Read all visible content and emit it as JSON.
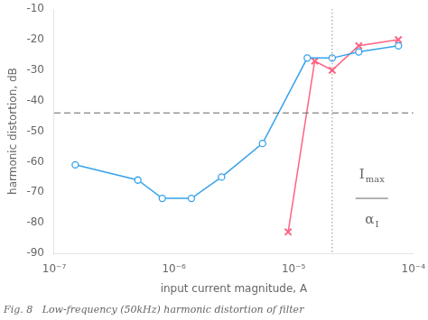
{
  "chart_data": {
    "type": "line",
    "xlabel": "input current magnitude, A",
    "ylabel": "harmonic distortion, dB",
    "caption": "Fig. 8   Low-frequency (50kHz) harmonic distortion of filter",
    "log": "x",
    "grid": false,
    "xlim": [
      1e-07,
      0.0001
    ],
    "xticks": [
      {
        "value": 1e-07,
        "label": "10⁻⁷"
      },
      {
        "value": 1e-06,
        "label": "10⁻⁶"
      },
      {
        "value": 1e-05,
        "label": "10⁻⁵"
      },
      {
        "value": 0.0001,
        "label": "10⁻⁴"
      }
    ],
    "ylim": [
      -90,
      -10
    ],
    "yticks": [
      -90,
      -80,
      -70,
      -60,
      -50,
      -40,
      -30,
      -20,
      -10
    ],
    "series": [
      {
        "x": [
          1.5e-07,
          5e-07,
          8e-07,
          1.4e-06,
          2.5e-06,
          5.5e-06,
          1.3e-05,
          2.1e-05,
          3.5e-05,
          7.5e-05
        ],
        "values": [
          -61,
          -66,
          -72,
          -72,
          -65,
          -54,
          -26,
          -26,
          -24,
          -22
        ],
        "marker": "circle",
        "line_style": "solid"
      },
      {
        "x": [
          9e-06,
          1.5e-05,
          2.1e-05,
          3.5e-05,
          7.5e-05
        ],
        "values": [
          -83,
          -27,
          -30,
          -22,
          -20
        ],
        "marker": "x",
        "line_style": "solid"
      }
    ],
    "hlines": [
      {
        "y": -44,
        "line_style": "dashed"
      }
    ],
    "vlines": [
      {
        "x": 2.1e-05,
        "line_style": "dotted"
      }
    ],
    "annotations": [
      {
        "type": "fraction",
        "x": 4.5e-05,
        "numerator": {
          "text": "I",
          "sub": "max"
        },
        "y_numerator": -67,
        "denominator": {
          "text": "α",
          "sub": "I"
        },
        "y_denominator": -77,
        "y_bar": -72
      }
    ]
  }
}
